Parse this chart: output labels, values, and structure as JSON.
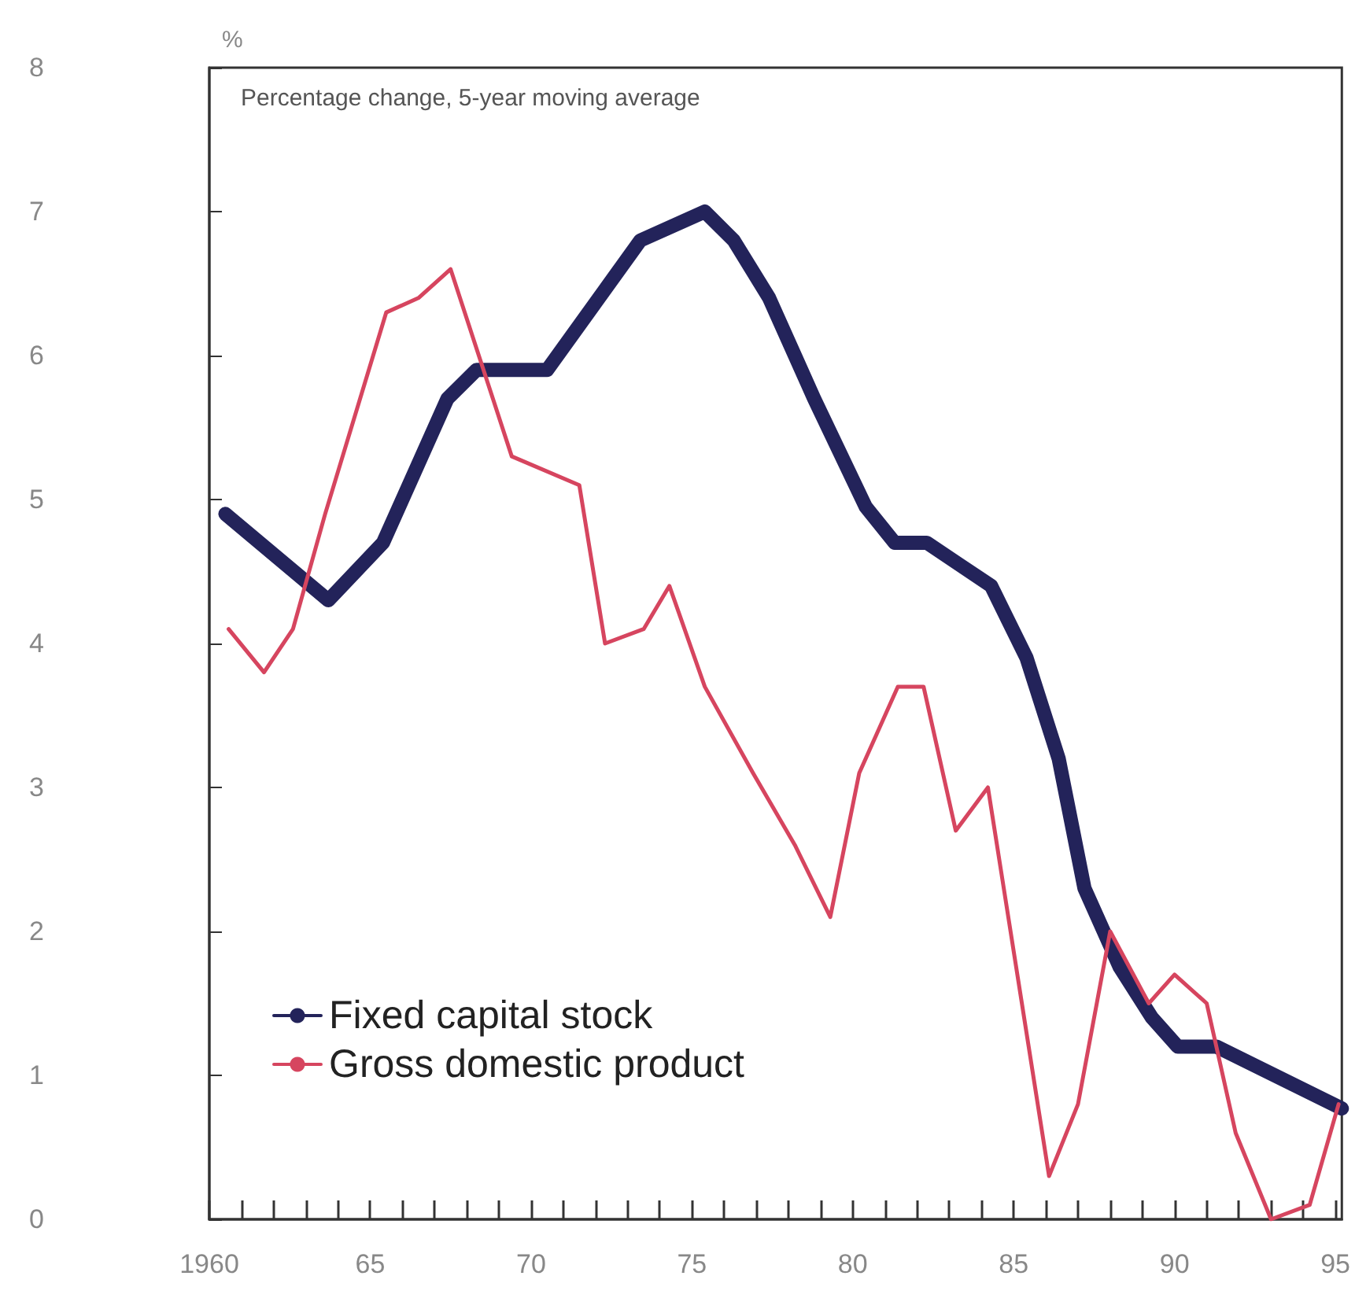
{
  "chart_data": {
    "type": "line",
    "subtitle": "Percentage change, 5-year moving average",
    "ylabel": "%",
    "xlim": [
      1960,
      1995.2
    ],
    "xticks": [
      1960,
      {
        "value": 1961,
        "label": null
      },
      {
        "value": 1962,
        "label": null
      },
      {
        "value": 1963,
        "label": null
      },
      {
        "value": 1964,
        "label": null
      },
      {
        "value": 1965,
        "label": "65"
      },
      {
        "value": 1966,
        "label": null
      },
      {
        "value": 1967,
        "label": null
      },
      {
        "value": 1968,
        "label": null
      },
      {
        "value": 1969,
        "label": null
      },
      {
        "value": 1970,
        "label": "70"
      },
      {
        "value": 1971,
        "label": null
      },
      {
        "value": 1972,
        "label": null
      },
      {
        "value": 1973,
        "label": null
      },
      {
        "value": 1974,
        "label": null
      },
      {
        "value": 1975,
        "label": "75"
      },
      {
        "value": 1976,
        "label": null
      },
      {
        "value": 1977,
        "label": null
      },
      {
        "value": 1978,
        "label": null
      },
      {
        "value": 1979,
        "label": null
      },
      {
        "value": 1980,
        "label": "80"
      },
      {
        "value": 1981,
        "label": null
      },
      {
        "value": 1982,
        "label": null
      },
      {
        "value": 1983,
        "label": null
      },
      {
        "value": 1984,
        "label": null
      },
      {
        "value": 1985,
        "label": "85"
      },
      {
        "value": 1986,
        "label": null
      },
      {
        "value": 1987,
        "label": null
      },
      {
        "value": 1988,
        "label": null
      },
      {
        "value": 1989,
        "label": null
      },
      {
        "value": 1990,
        "label": "90"
      },
      {
        "value": 1991,
        "label": null
      },
      {
        "value": 1992,
        "label": null
      },
      {
        "value": 1993,
        "label": null
      },
      {
        "value": 1994,
        "label": null
      },
      {
        "value": 1995,
        "label": "95"
      }
    ],
    "ylim": [
      0,
      8
    ],
    "yticks": [
      0,
      1,
      2,
      3,
      4,
      5,
      6,
      7,
      8
    ],
    "grid": false,
    "legend": "bottom left",
    "series": [
      {
        "name": "Fixed capital stock",
        "color": "#23235a",
        "x": [
          1960.5,
          1963.7,
          1965.4,
          1967.4,
          1968.3,
          1970.5,
          1973.4,
          1975.4,
          1976.3,
          1977.4,
          1978.8,
          1980.4,
          1981.3,
          1982.3,
          1983.3,
          1984.3,
          1985.4,
          1986.4,
          1987.2,
          1988.3,
          1989.3,
          1990.1,
          1991.3,
          1995.2
        ],
        "values": [
          4.9,
          4.3,
          4.7,
          5.7,
          5.9,
          5.9,
          6.8,
          7.0,
          6.8,
          6.4,
          5.7,
          4.95,
          4.7,
          4.7,
          4.55,
          4.4,
          3.9,
          3.2,
          2.3,
          1.75,
          1.4,
          1.2,
          1.2,
          0.77
        ]
      },
      {
        "name": "Gross domestic product",
        "color": "#d6455f",
        "x": [
          1960.6,
          1961.7,
          1962.6,
          1963.6,
          1965.5,
          1966.5,
          1967.5,
          1969.4,
          1971.5,
          1972.3,
          1973.5,
          1974.3,
          1975.4,
          1976.9,
          1978.2,
          1979.3,
          1980.2,
          1981.4,
          1982.2,
          1983.2,
          1984.2,
          1986.1,
          1987.0,
          1988.0,
          1989.2,
          1990.0,
          1991.0,
          1991.9,
          1993.0,
          1994.2,
          1995.1
        ],
        "values": [
          4.1,
          3.8,
          4.1,
          4.9,
          6.3,
          6.4,
          6.6,
          5.3,
          5.1,
          4.0,
          4.1,
          4.4,
          3.7,
          3.1,
          2.6,
          2.1,
          3.1,
          3.7,
          3.7,
          2.7,
          3.0,
          0.3,
          0.8,
          2.0,
          1.5,
          1.7,
          1.5,
          0.6,
          0.0,
          0.1,
          0.8
        ]
      }
    ]
  }
}
